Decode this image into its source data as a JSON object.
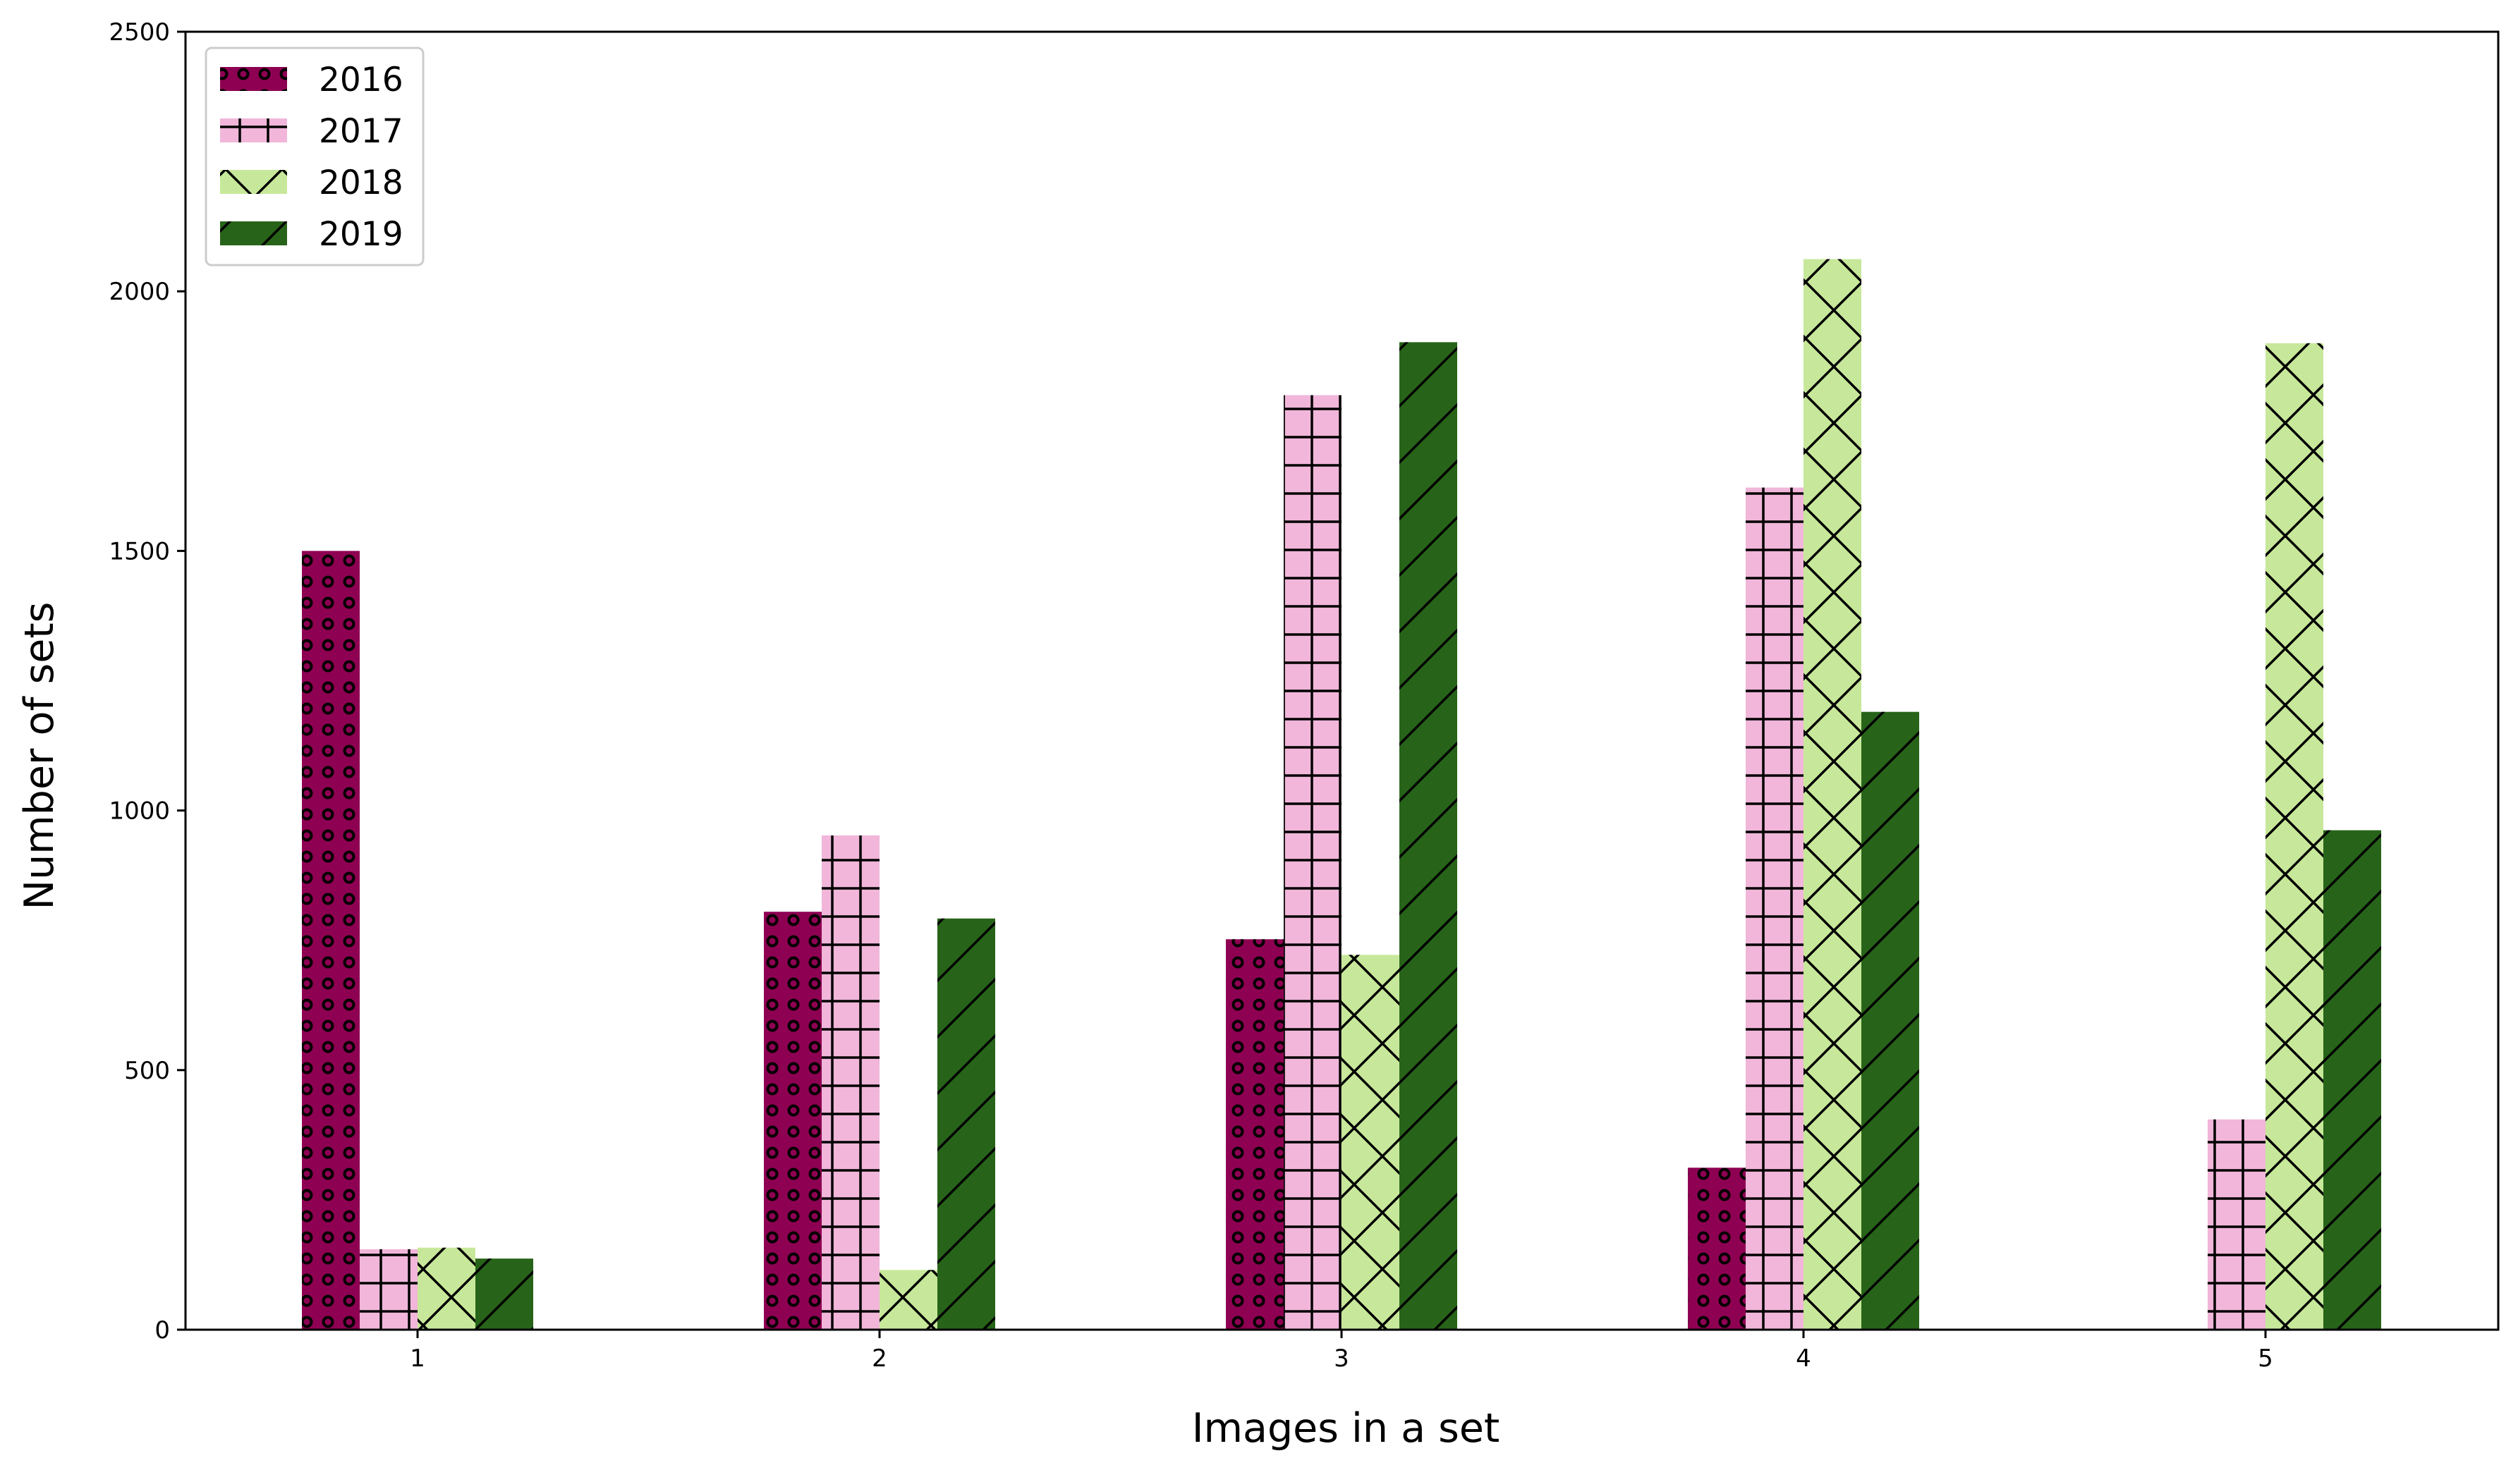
{
  "chart_data": {
    "type": "bar",
    "title": "",
    "xlabel": "Images in a set",
    "ylabel": "Number of sets",
    "categories": [
      "1",
      "2",
      "3",
      "4",
      "5"
    ],
    "yticks": [
      "0",
      "500",
      "1000",
      "1500",
      "2000",
      "2500"
    ],
    "ylim": [
      0,
      2500
    ],
    "grid": false,
    "legend_position": "top-left",
    "series": [
      {
        "name": "2016",
        "color": "#8e0152",
        "hatch": "circles",
        "values": [
          1500,
          805,
          752,
          312,
          0
        ]
      },
      {
        "name": "2017",
        "color": "#f1b6da",
        "hatch": "plus",
        "values": [
          155,
          952,
          1800,
          1622,
          405
        ]
      },
      {
        "name": "2018",
        "color": "#c7e89a",
        "hatch": "crosshatch-x",
        "values": [
          158,
          115,
          722,
          2062,
          1900
        ]
      },
      {
        "name": "2019",
        "color": "#276419",
        "hatch": "diagonal",
        "values": [
          137,
          792,
          1902,
          1190,
          962
        ]
      }
    ]
  }
}
